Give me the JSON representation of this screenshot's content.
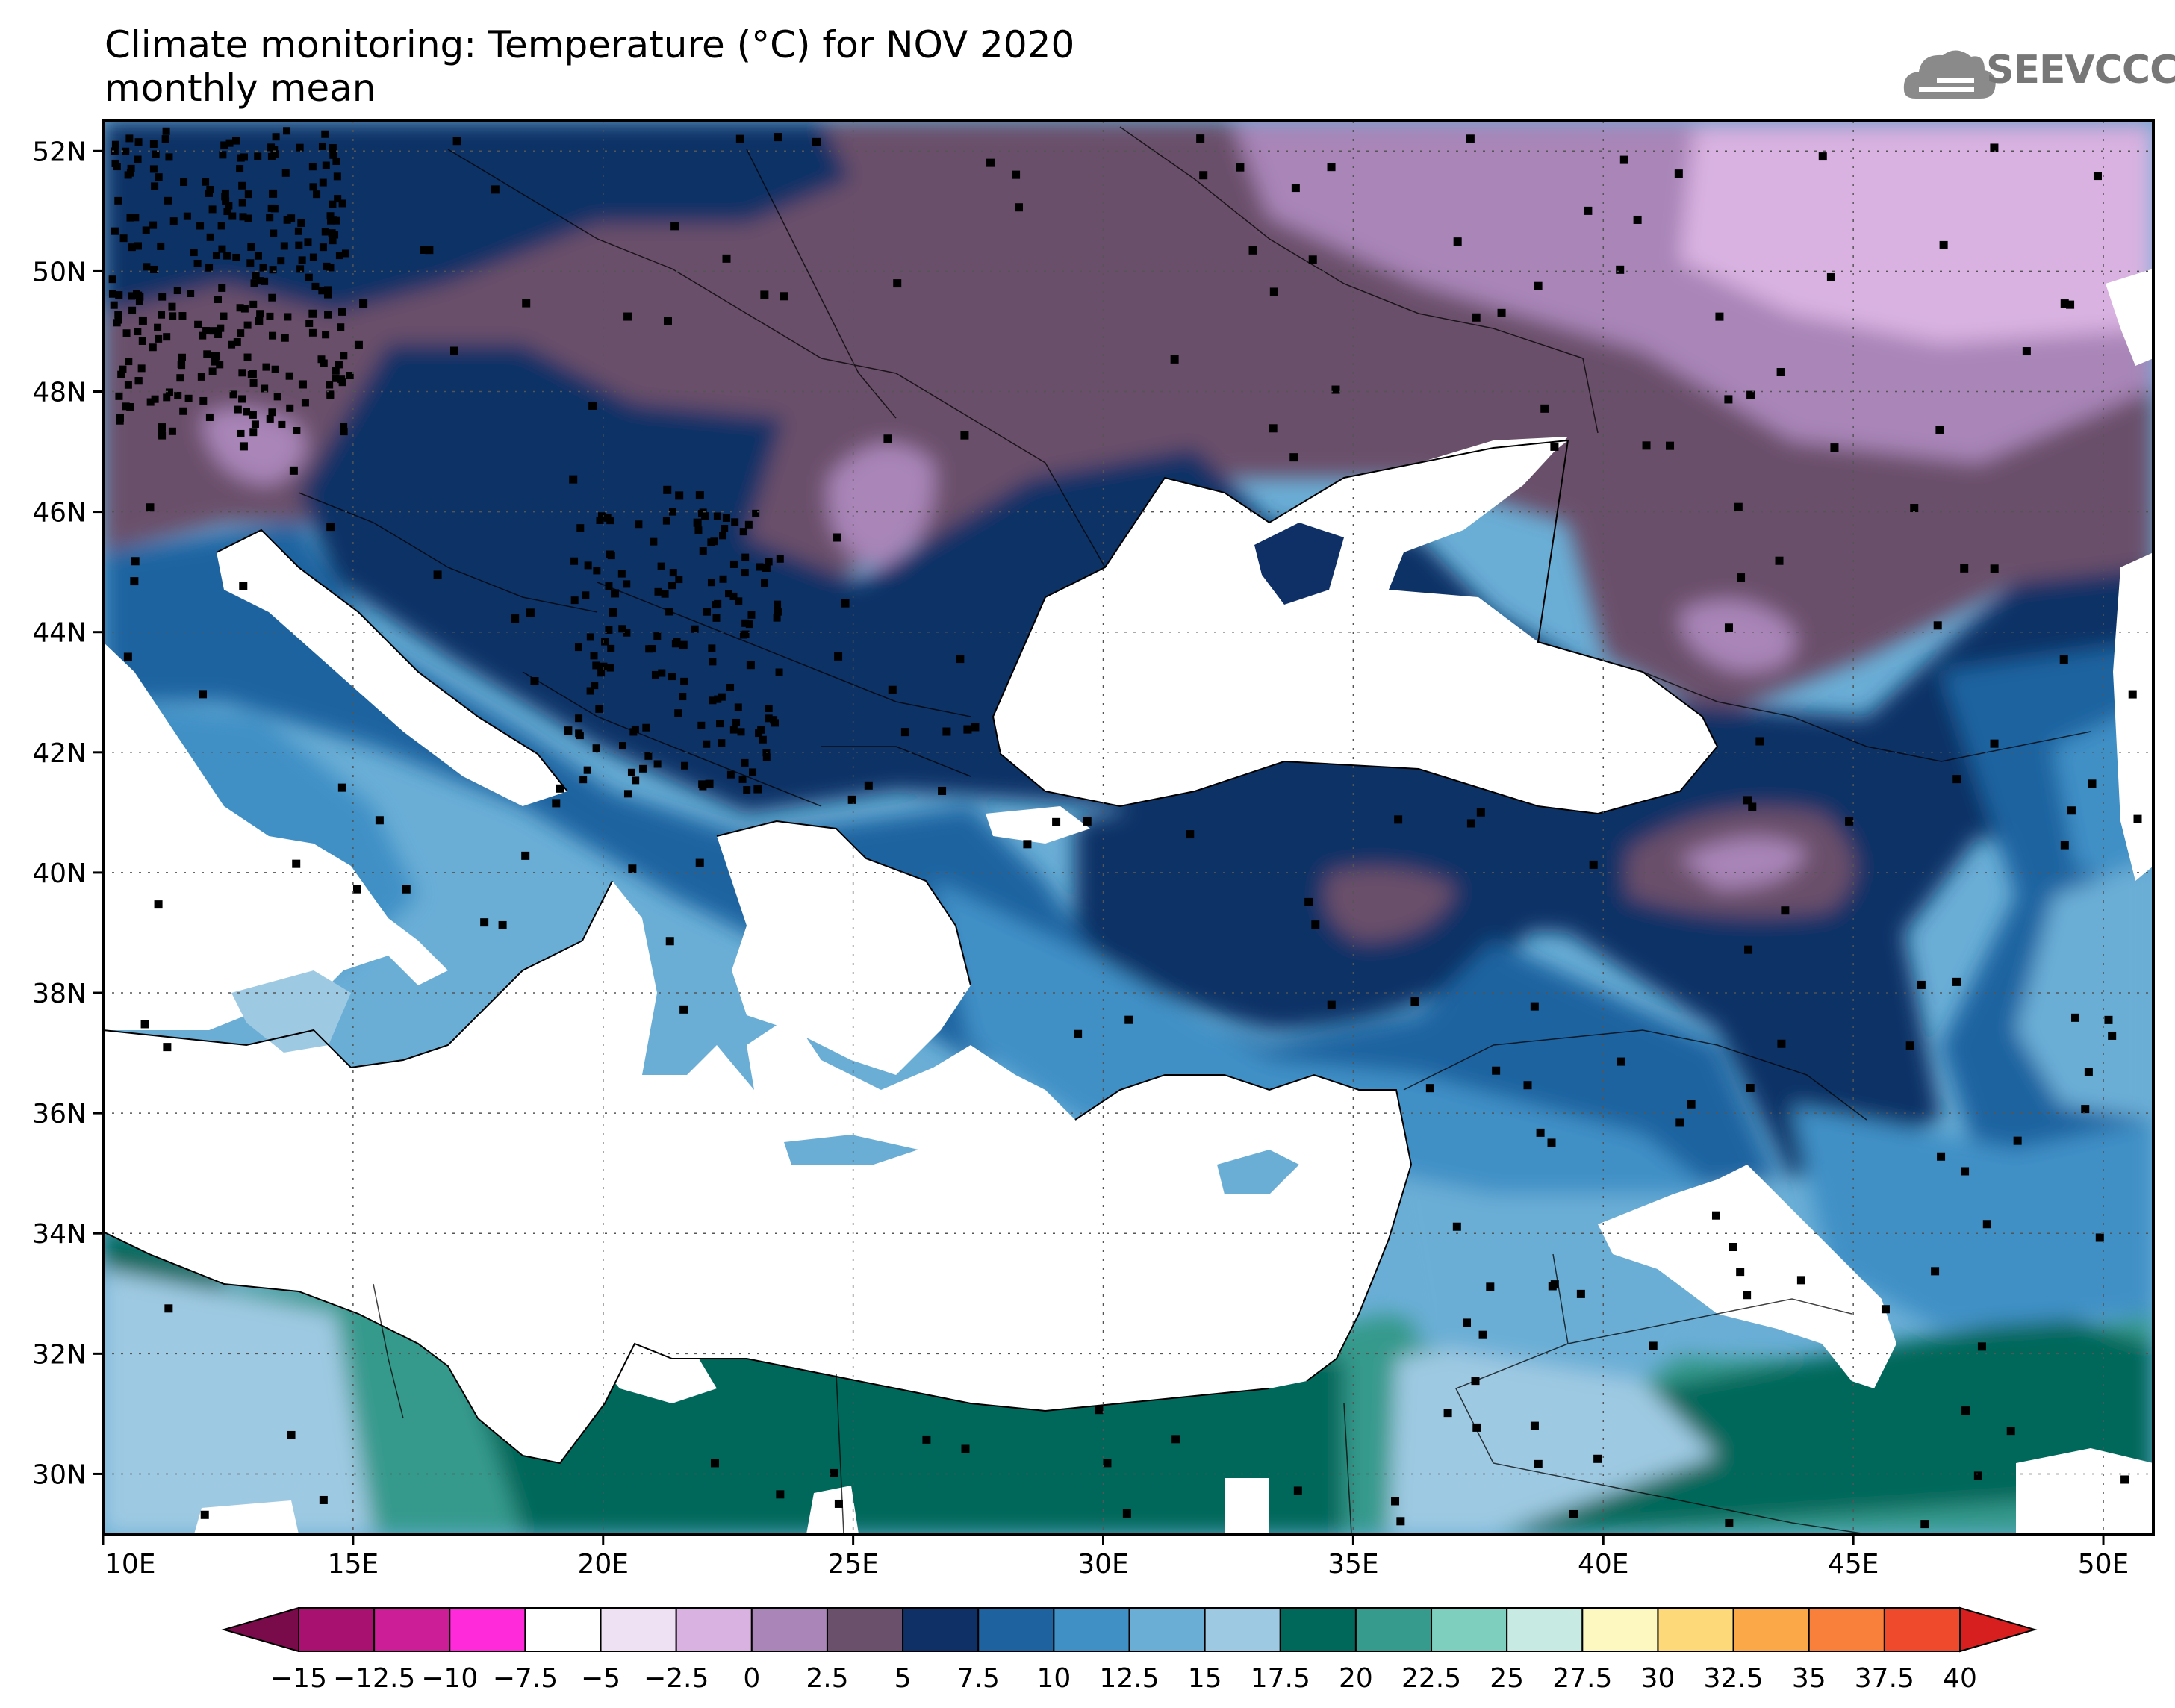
{
  "title": {
    "line1": "Climate monitoring: Temperature (°C) for NOV 2020",
    "line2": "monthly mean"
  },
  "logo": {
    "text": "SEEVCCC",
    "icon": "cloud-icon"
  },
  "map": {
    "lon_range": [
      10,
      51
    ],
    "lat_range": [
      29,
      52.5
    ],
    "x_tick_labels": [
      "10E",
      "15E",
      "20E",
      "25E",
      "30E",
      "35E",
      "40E",
      "45E",
      "50E"
    ],
    "y_tick_labels": [
      "52N",
      "50N",
      "48N",
      "46N",
      "44N",
      "42N",
      "40N",
      "38N",
      "36N",
      "34N",
      "32N",
      "30N"
    ],
    "gridlines": true,
    "station_markers": true
  },
  "colorbar": {
    "labels": [
      "-15",
      "-12.5",
      "-10",
      "-7.5",
      "-5",
      "-2.5",
      "0",
      "2.5",
      "5",
      "7.5",
      "10",
      "12.5",
      "15",
      "17.5",
      "20",
      "22.5",
      "25",
      "27.5",
      "30",
      "32.5",
      "35",
      "37.5",
      "40"
    ],
    "colors": [
      "#7a0b4a",
      "#a8116f",
      "#cc1f97",
      "#ff2ad9",
      "#ffffff",
      "#efe1f4",
      "#d9b2e1",
      "#a985b8",
      "#6a506b",
      "#0f3066",
      "#1e63a0",
      "#4090c6",
      "#6aaed6",
      "#9ec9e2",
      "#00685a",
      "#369a8c",
      "#7fcfbf",
      "#c7ebe2",
      "#fdf8c0",
      "#fdd97a",
      "#fba948",
      "#f8803a",
      "#ef4a2c",
      "#d81f20"
    ]
  }
}
